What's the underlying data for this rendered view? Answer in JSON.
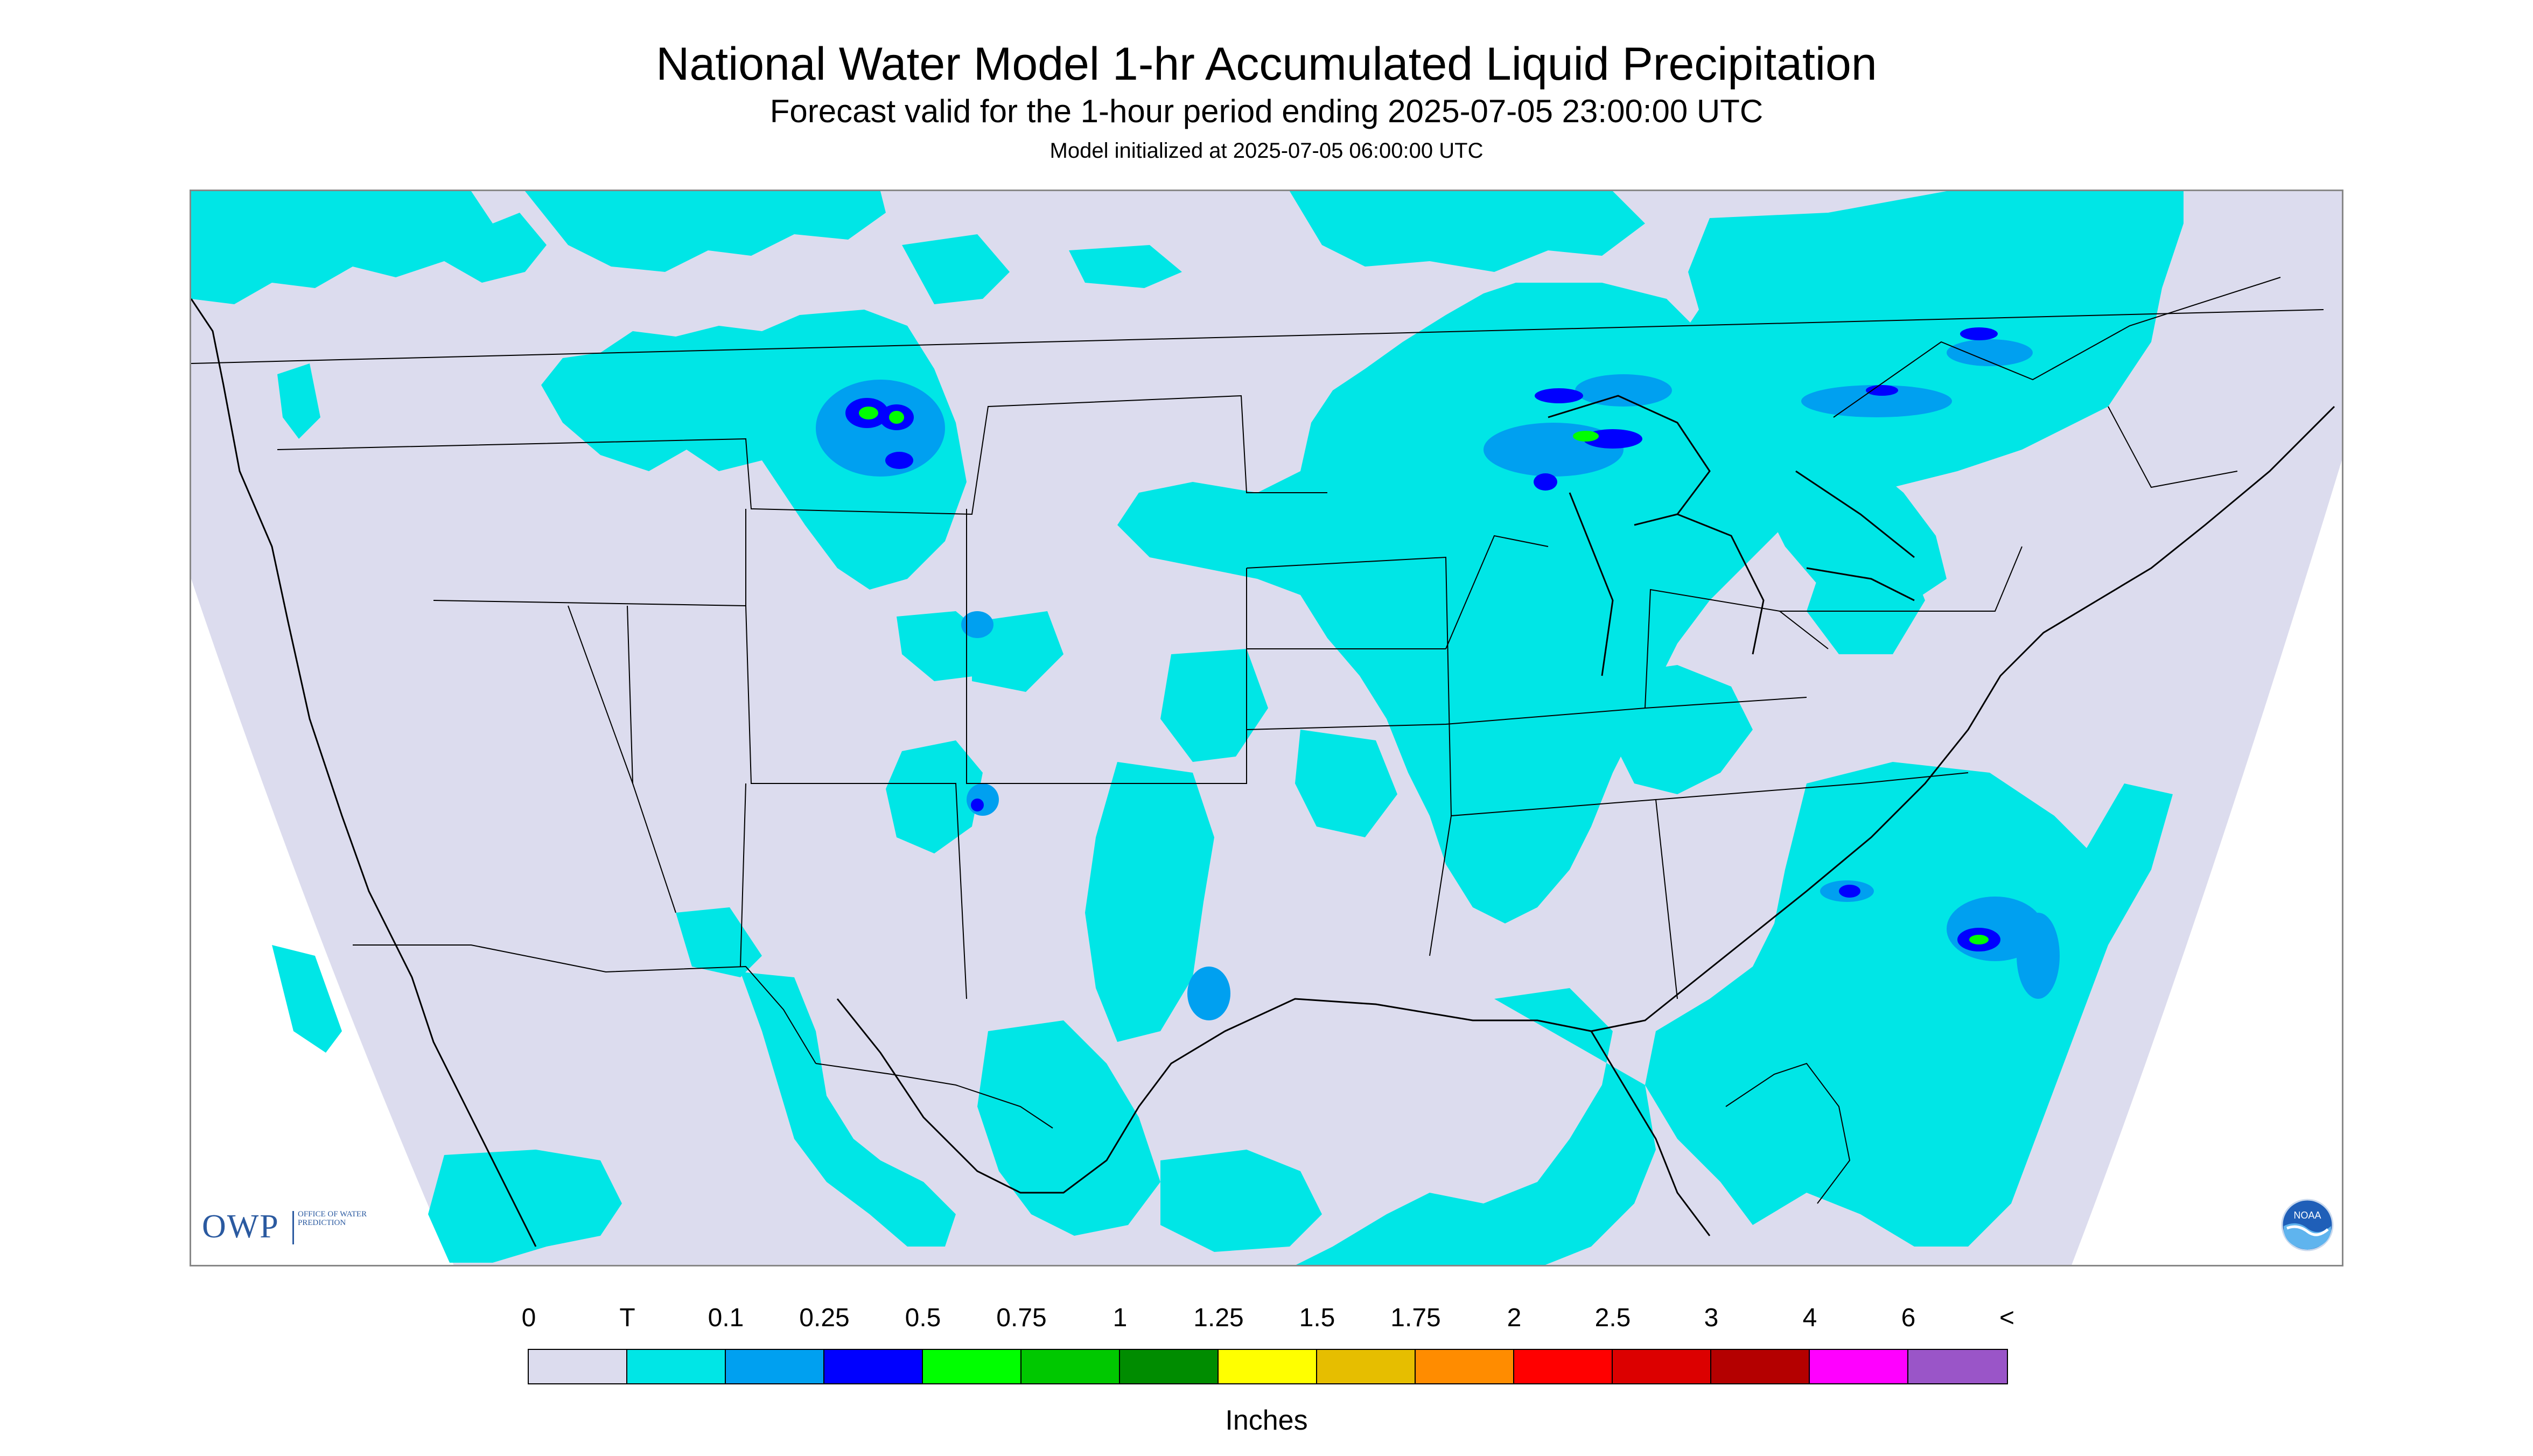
{
  "title": "National Water Model 1-hr Accumulated Liquid Precipitation",
  "subtitle": "Forecast valid for the 1-hour period ending 2025-07-05 23:00:00 UTC",
  "init_note": "Model initialized at 2025-07-05 06:00:00 UTC",
  "logos": {
    "owp": {
      "text": "OWP",
      "subtext": "OFFICE OF WATER PREDICTION"
    },
    "noaa": {
      "text": "NOAA"
    }
  },
  "legend": {
    "labels": [
      "0",
      "T",
      "0.1",
      "0.25",
      "0.5",
      "0.75",
      "1",
      "1.25",
      "1.5",
      "1.75",
      "2",
      "2.5",
      "3",
      "4",
      "6",
      "<"
    ],
    "colors": [
      "#dcdcee",
      "#00e6e6",
      "#00a0f0",
      "#0000ff",
      "#00ff00",
      "#00c800",
      "#008c00",
      "#ffff00",
      "#e6be00",
      "#ff8c00",
      "#ff0000",
      "#dc0000",
      "#b40000",
      "#ff00ff",
      "#9a55c8"
    ],
    "units": "Inches"
  },
  "map": {
    "no_data_color": "#dcdcee",
    "precip_regions": "Light precipitation (trace to 0.1 in) across Pacific Northwest, northern Rockies, central/southern Plains, Upper Midwest and Great Lakes, Ontario/Quebec, Southeast and western Atlantic, Mexico; isolated heavier cells up to 1 in in Montana/Wyoming, Upper Michigan, coastal North Carolina"
  }
}
